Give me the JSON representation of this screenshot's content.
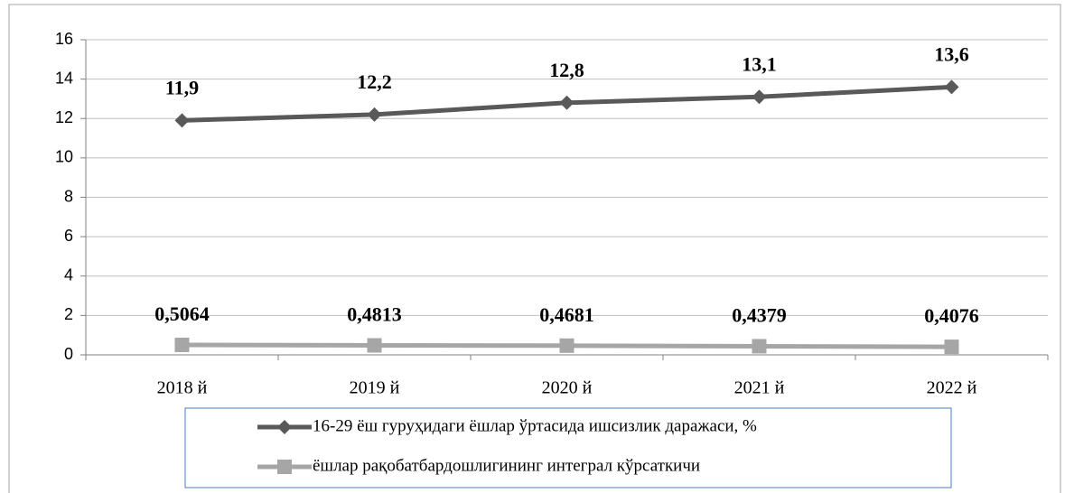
{
  "chart_data": {
    "type": "line",
    "categories": [
      "2018 й",
      "2019 й",
      "2020 й",
      "2021 й",
      "2022 й"
    ],
    "series": [
      {
        "name": "16-29 ёш гуруҳидаги ёшлар ўртасида ишсизлик даражаси, %",
        "color": "#595959",
        "marker": "diamond",
        "values": [
          11.9,
          12.2,
          12.8,
          13.1,
          13.6
        ],
        "value_labels": [
          "11,9",
          "12,2",
          "12,8",
          "13,1",
          "13,6"
        ]
      },
      {
        "name": "ёшлар рақобатбардошлигининг интеграл кўрсаткичи",
        "color": "#a6a6a6",
        "marker": "square",
        "values": [
          0.5064,
          0.4813,
          0.4681,
          0.4379,
          0.4076
        ],
        "value_labels": [
          "0,5064",
          "0,4813",
          "0,4681",
          "0,4379",
          "0,4076"
        ]
      }
    ],
    "ylim": [
      0,
      16
    ],
    "yticks": [
      0,
      2,
      4,
      6,
      8,
      10,
      12,
      14,
      16
    ],
    "grid": true,
    "legend": "bottom"
  }
}
